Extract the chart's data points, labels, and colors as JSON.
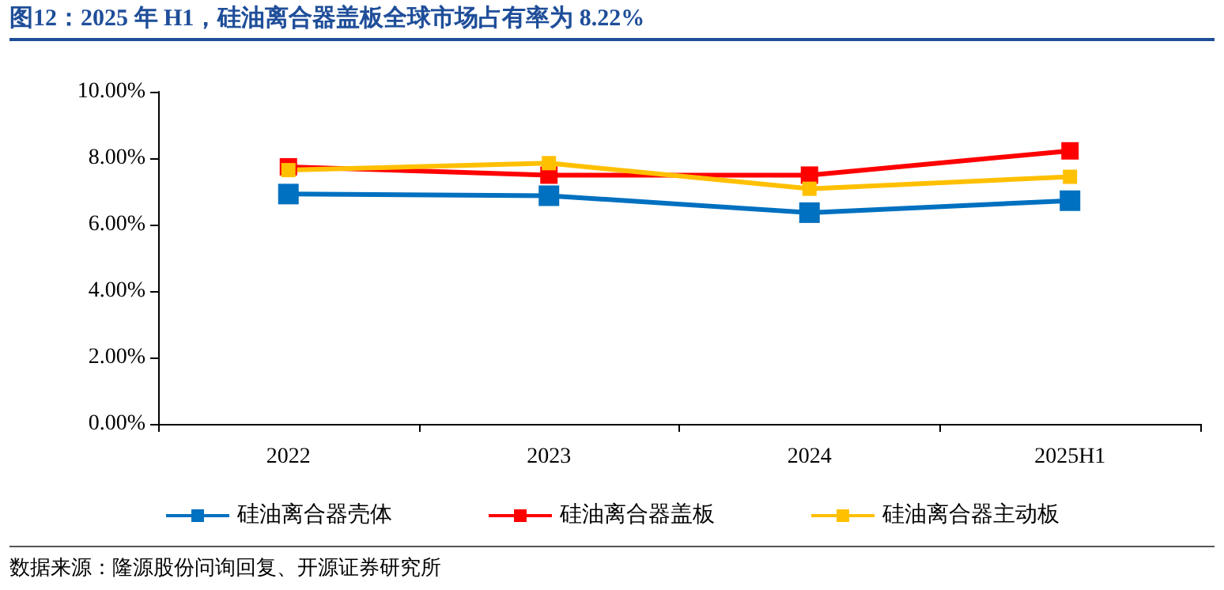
{
  "chart_data": {
    "type": "line",
    "title": "图12：2025 年 H1，硅油离合器盖板全球市场占有率为 8.22%",
    "categories": [
      "2022",
      "2023",
      "2024",
      "2025H1"
    ],
    "series": [
      {
        "name": "硅油离合器壳体",
        "color": "#0070c0",
        "values": [
          6.92,
          6.87,
          6.36,
          6.72
        ]
      },
      {
        "name": "硅油离合器盖板",
        "color": "#ff0000",
        "values": [
          7.74,
          7.49,
          7.49,
          8.22
        ]
      },
      {
        "name": "硅油离合器主动板",
        "color": "#ffc000",
        "values": [
          7.64,
          7.85,
          7.08,
          7.44
        ]
      }
    ],
    "ylim": [
      0,
      10
    ],
    "yticks": [
      {
        "value": 0,
        "label": "0.00%"
      },
      {
        "value": 2,
        "label": "2.00%"
      },
      {
        "value": 4,
        "label": "4.00%"
      },
      {
        "value": 6,
        "label": "6.00%"
      },
      {
        "value": 8,
        "label": "8.00%"
      },
      {
        "value": 10,
        "label": "10.00%"
      }
    ],
    "grid": false,
    "legend": "bottom",
    "marker": "square",
    "line_style": "solid",
    "annotations": [
      "数据来源：隆源股份问询回复、开源证券研究所"
    ]
  }
}
